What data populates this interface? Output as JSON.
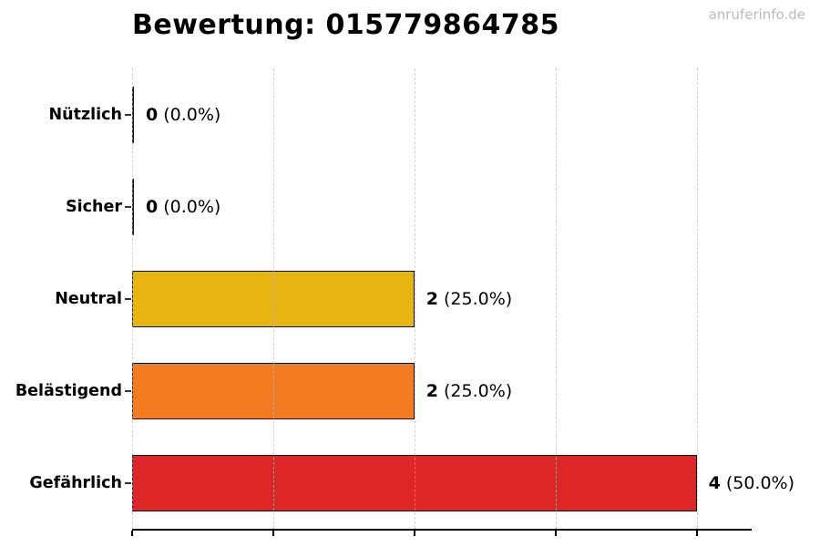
{
  "header": {
    "title": "Bewertung: 015779864785",
    "watermark": "anruferinfo.de"
  },
  "colors": {
    "bar_border": "#111111",
    "zero_bar": "#1a1a1a",
    "gridline": "#bdbdbd",
    "axis": "#000000",
    "watermark_text": "#bbbbbb",
    "yellow": "#e9b411",
    "orange": "#f57b20",
    "red": "#dd2727"
  },
  "chart_data": {
    "type": "bar",
    "orientation": "horizontal",
    "title": "Bewertung: 015779864785",
    "categories": [
      "Nützlich",
      "Sicher",
      "Neutral",
      "Belästigend",
      "Gefährlich"
    ],
    "values": [
      0,
      0,
      2,
      2,
      4
    ],
    "percentages": [
      0.0,
      0.0,
      25.0,
      25.0,
      50.0
    ],
    "rows": [
      {
        "label": "Nützlich",
        "value": 0,
        "count": "0",
        "pct": "(0.0%)",
        "color": "#1a1a1a"
      },
      {
        "label": "Sicher",
        "value": 0,
        "count": "0",
        "pct": "(0.0%)",
        "color": "#1a1a1a"
      },
      {
        "label": "Neutral",
        "value": 2,
        "count": "2",
        "pct": "(25.0%)",
        "color": "#e9b411"
      },
      {
        "label": "Belästigend",
        "value": 2,
        "count": "2",
        "pct": "(25.0%)",
        "color": "#f57b20"
      },
      {
        "label": "Gefährlich",
        "value": 4,
        "count": "4",
        "pct": "(50.0%)",
        "color": "#dd2727"
      }
    ],
    "xlabel": "",
    "ylabel": "",
    "xlim": [
      0,
      4.39
    ],
    "x_ticks": [
      0,
      1,
      2,
      3,
      4
    ],
    "x_tick_labels_visible": false,
    "grid": true,
    "grid_style": "dashed",
    "legend": "none"
  }
}
